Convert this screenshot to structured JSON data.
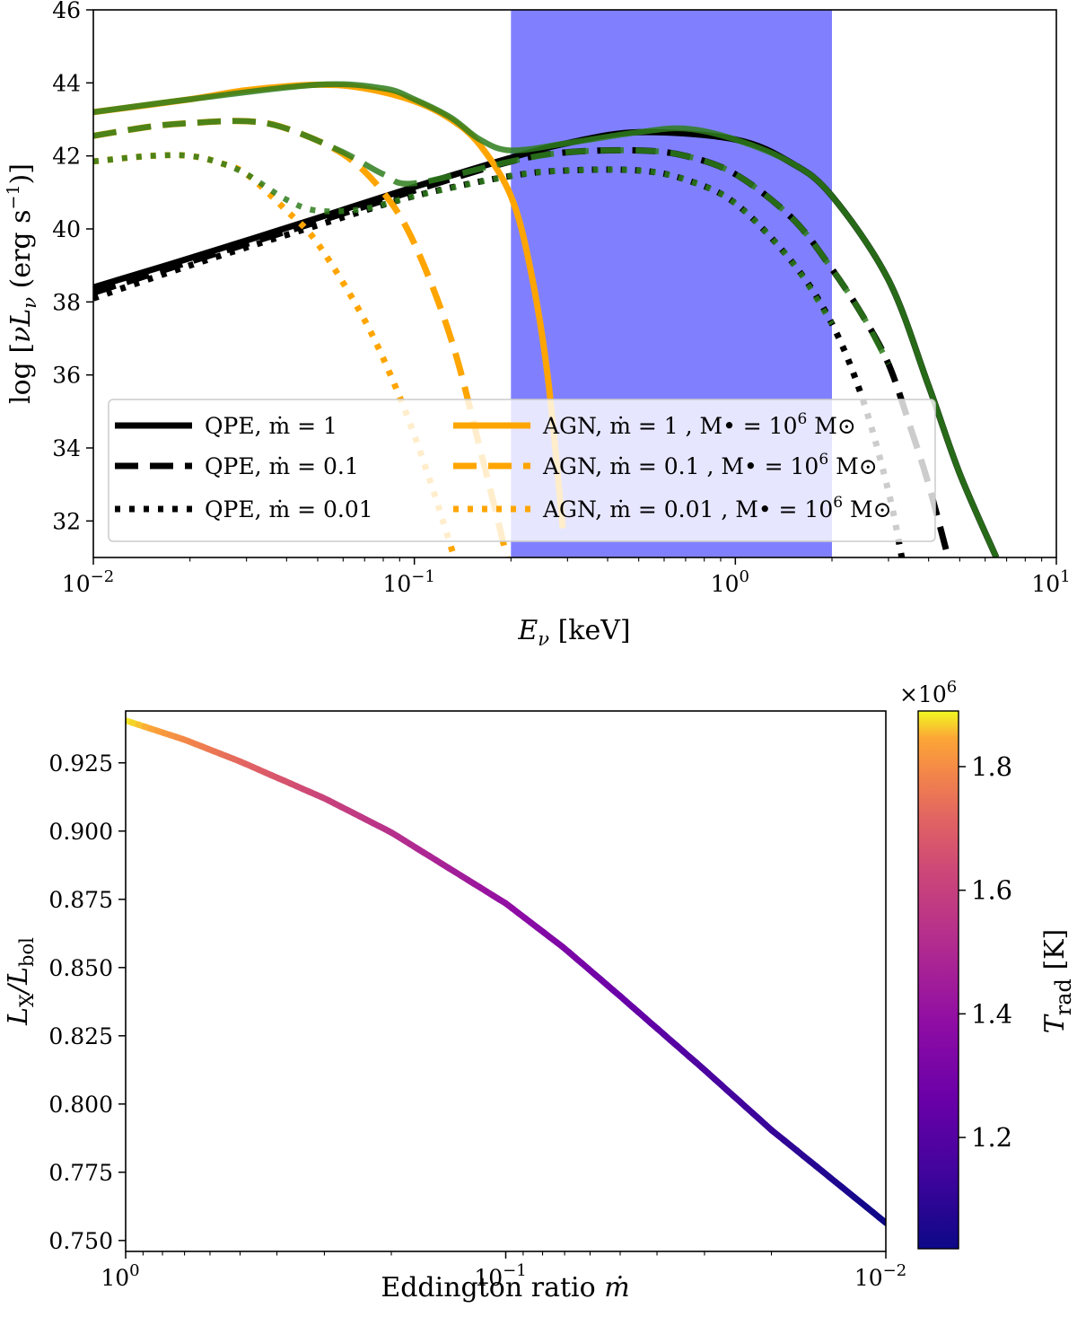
{
  "chart_data": [
    {
      "type": "line",
      "xscale": "log",
      "xlim": [
        0.01,
        10
      ],
      "ylim": [
        31,
        46
      ],
      "xlabel": "E_ν [keV]",
      "ylabel": "log[νL_ν (erg s^-1)]",
      "x_ticks": [
        {
          "value": 0.01,
          "base": "10",
          "exp": "−2"
        },
        {
          "value": 0.1,
          "base": "10",
          "exp": "−1"
        },
        {
          "value": 1,
          "base": "10",
          "exp": "0"
        },
        {
          "value": 10,
          "base": "10",
          "exp": "1"
        }
      ],
      "y_ticks": [
        "32",
        "34",
        "36",
        "38",
        "40",
        "42",
        "44",
        "46"
      ],
      "band": {
        "x_range": [
          0.2,
          2
        ],
        "color": "#8080ff"
      },
      "legend_position": "lower-center",
      "legend": [
        {
          "label": "QPE, ṁ = 1",
          "color": "#000000",
          "style": "solid"
        },
        {
          "label": "QPE, ṁ = 0.1",
          "color": "#000000",
          "style": "dashed"
        },
        {
          "label": "QPE, ṁ = 0.01",
          "color": "#000000",
          "style": "dotted"
        },
        {
          "label": "AGN, ṁ = 1 , M• = 10^6 M⊙",
          "color": "#ffa500",
          "style": "solid"
        },
        {
          "label": "AGN, ṁ = 0.1 , M• = 10^6 M⊙",
          "color": "#ffa500",
          "style": "dashed"
        },
        {
          "label": "AGN, ṁ = 0.01 , M• = 10^6 M⊙",
          "color": "#ffa500",
          "style": "dotted"
        }
      ],
      "series": [
        {
          "group": "QPE",
          "mdot": 1,
          "style": "solid",
          "color": "#000000",
          "x": [
            0.01,
            0.02,
            0.05,
            0.1,
            0.2,
            0.3,
            0.5,
            1,
            1.5,
            2,
            3,
            4,
            5,
            6.5
          ],
          "y": [
            38.4,
            39.2,
            40.3,
            41.15,
            41.95,
            42.35,
            42.65,
            42.45,
            41.8,
            40.9,
            38.6,
            35.7,
            33.3,
            31.0
          ]
        },
        {
          "group": "QPE",
          "mdot": 0.1,
          "style": "dashed",
          "color": "#000000",
          "x": [
            0.01,
            0.02,
            0.05,
            0.1,
            0.2,
            0.3,
            0.5,
            0.7,
            1,
            1.5,
            2,
            2.5,
            3,
            3.5,
            4,
            4.6
          ],
          "y": [
            38.25,
            39.1,
            40.2,
            41.05,
            41.85,
            42.1,
            42.15,
            42.0,
            41.5,
            40.3,
            38.9,
            37.6,
            36.3,
            34.6,
            33.0,
            31.0
          ]
        },
        {
          "group": "QPE",
          "mdot": 0.01,
          "style": "dotted",
          "color": "#000000",
          "x": [
            0.01,
            0.02,
            0.05,
            0.1,
            0.2,
            0.3,
            0.5,
            0.7,
            1,
            1.5,
            2,
            2.5,
            3,
            3.3
          ],
          "y": [
            38.1,
            39.0,
            40.1,
            40.9,
            41.45,
            41.6,
            41.6,
            41.35,
            40.7,
            39.1,
            37.4,
            35.3,
            32.8,
            31.0
          ]
        },
        {
          "group": "AGN",
          "mdot": 1,
          "style": "solid",
          "color": "#ffa500",
          "x": [
            0.01,
            0.02,
            0.03,
            0.05,
            0.07,
            0.1,
            0.13,
            0.16,
            0.2,
            0.23,
            0.26,
            0.29
          ],
          "y": [
            43.2,
            43.55,
            43.8,
            43.95,
            43.85,
            43.5,
            43.0,
            42.3,
            40.9,
            38.9,
            36.0,
            31.8
          ]
        },
        {
          "group": "AGN",
          "mdot": 0.1,
          "style": "dashed",
          "color": "#ffa500",
          "x": [
            0.01,
            0.015,
            0.02,
            0.03,
            0.04,
            0.06,
            0.08,
            0.1,
            0.13,
            0.16,
            0.2,
            0.22
          ],
          "y": [
            42.55,
            42.8,
            42.9,
            42.95,
            42.75,
            42.05,
            41.0,
            39.6,
            37.0,
            34.0,
            30.5,
            28.5
          ]
        },
        {
          "group": "AGN",
          "mdot": 0.01,
          "style": "dotted",
          "color": "#ffa500",
          "x": [
            0.01,
            0.015,
            0.02,
            0.025,
            0.03,
            0.04,
            0.05,
            0.07,
            0.09,
            0.11,
            0.13,
            0.15
          ],
          "y": [
            41.85,
            42.0,
            42.0,
            41.8,
            41.5,
            40.5,
            39.6,
            37.5,
            35.4,
            33.3,
            31.3,
            29.5
          ]
        },
        {
          "group": "QPE+AGN",
          "mdot": 1,
          "style": "solid",
          "color": "#2e7d1c",
          "x": [
            0.01,
            0.02,
            0.05,
            0.08,
            0.1,
            0.13,
            0.16,
            0.2,
            0.3,
            0.5,
            0.7,
            1,
            1.5,
            2,
            3,
            4,
            5,
            6.5
          ],
          "y": [
            43.2,
            43.55,
            43.95,
            43.85,
            43.55,
            43.05,
            42.45,
            42.15,
            42.35,
            42.65,
            42.75,
            42.45,
            41.8,
            40.9,
            38.6,
            35.7,
            33.3,
            31.0
          ]
        },
        {
          "group": "QPE+AGN",
          "mdot": 0.1,
          "style": "dashed",
          "color": "#2e7d1c",
          "x": [
            0.01,
            0.015,
            0.02,
            0.03,
            0.04,
            0.06,
            0.08,
            0.1,
            0.2,
            0.3,
            0.5,
            0.7,
            1,
            1.5,
            2,
            2.5,
            3
          ],
          "y": [
            42.55,
            42.8,
            42.9,
            42.95,
            42.75,
            42.1,
            41.5,
            41.25,
            41.85,
            42.1,
            42.15,
            42.0,
            41.5,
            40.3,
            38.9,
            37.6,
            36.3
          ]
        },
        {
          "group": "QPE+AGN",
          "mdot": 0.01,
          "style": "dotted",
          "color": "#2e7d1c",
          "x": [
            0.01,
            0.015,
            0.02,
            0.025,
            0.03,
            0.04,
            0.05,
            0.07,
            0.1,
            0.2,
            0.3,
            0.5,
            0.7,
            1,
            1.5,
            2
          ],
          "y": [
            41.85,
            42.0,
            42.0,
            41.8,
            41.5,
            40.8,
            40.5,
            40.55,
            40.9,
            41.45,
            41.6,
            41.6,
            41.35,
            40.7,
            39.1,
            37.4
          ]
        }
      ]
    },
    {
      "type": "line",
      "xscale": "log",
      "xlim": [
        1,
        0.01
      ],
      "x_inverted": true,
      "ylim": [
        0.746,
        0.944
      ],
      "xlabel": "Eddington ratio ṁ",
      "ylabel": "L_X/L_bol",
      "x_ticks": [
        {
          "value": 1,
          "base": "10",
          "exp": "0"
        },
        {
          "value": 0.1,
          "base": "10",
          "exp": "−1"
        },
        {
          "value": 0.01,
          "base": "10",
          "exp": "−2"
        }
      ],
      "y_ticks": [
        "0.750",
        "0.775",
        "0.800",
        "0.825",
        "0.850",
        "0.875",
        "0.900",
        "0.925"
      ],
      "colormap": "plasma",
      "colorbar": {
        "label": "T_rad [K]",
        "multiplier": "×10^6",
        "range": [
          1.02,
          1.89
        ],
        "ticks": [
          "1.2",
          "1.4",
          "1.6",
          "1.8"
        ]
      },
      "series": [
        {
          "x": [
            1,
            0.7,
            0.5,
            0.3,
            0.2,
            0.1,
            0.07,
            0.05,
            0.03,
            0.02,
            0.01
          ],
          "y": [
            0.9405,
            0.9335,
            0.9255,
            0.912,
            0.8995,
            0.8735,
            0.857,
            0.8395,
            0.8125,
            0.7905,
            0.7565
          ],
          "c": [
            1.89,
            1.8,
            1.73,
            1.62,
            1.54,
            1.4,
            1.33,
            1.27,
            1.18,
            1.12,
            1.02
          ]
        }
      ]
    }
  ]
}
